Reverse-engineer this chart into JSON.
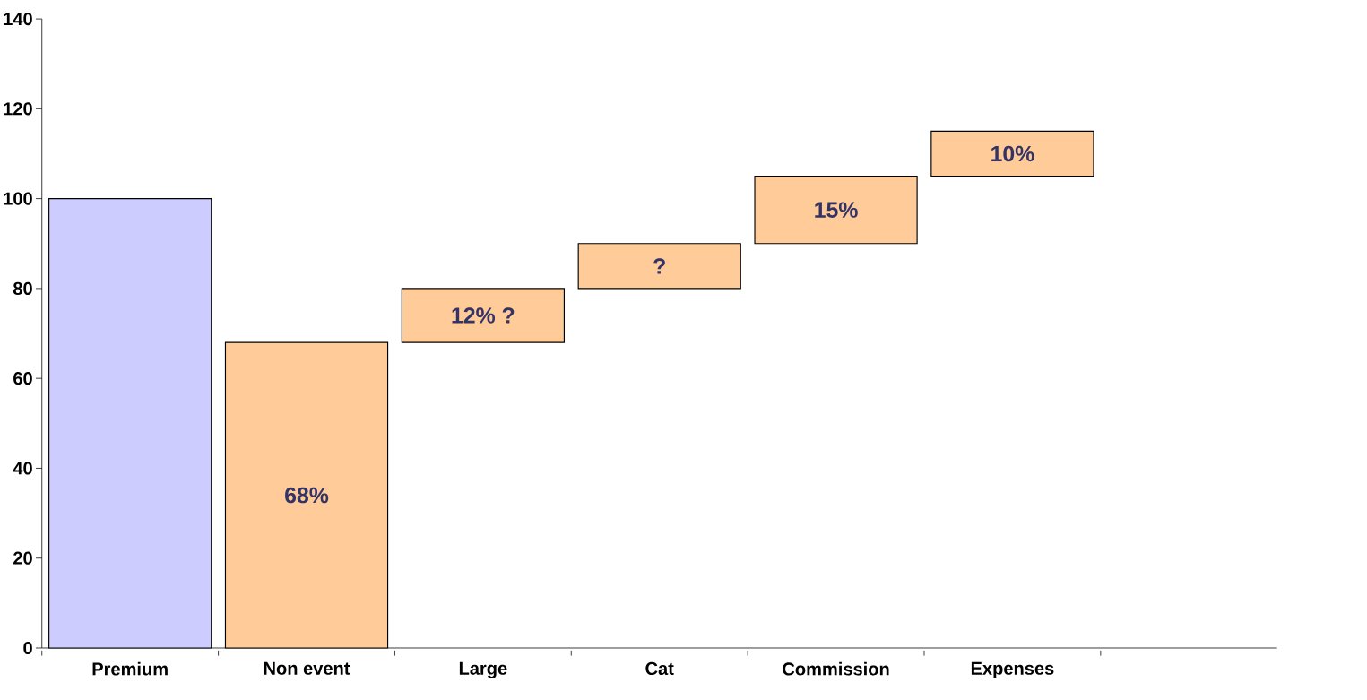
{
  "chart_data": {
    "type": "bar",
    "categories": [
      "Premium",
      "Non event",
      "Large",
      "Cat",
      "Commission",
      "Expenses",
      null
    ],
    "values": [
      100,
      68,
      12,
      10,
      15,
      10,
      null
    ],
    "base": [
      0,
      0,
      68,
      80,
      90,
      105,
      null
    ],
    "colors": [
      "#ccccff",
      "#ffcc99",
      "#ffcc99",
      "#ffcc99",
      "#ffcc99",
      "#ffcc99",
      null
    ],
    "value_labels": [
      null,
      "68%",
      "12% ?",
      "?",
      "15%",
      "10%",
      null
    ],
    "ylim": [
      0,
      140
    ],
    "yticks": [
      0,
      20,
      40,
      60,
      80,
      100,
      120,
      140
    ]
  }
}
